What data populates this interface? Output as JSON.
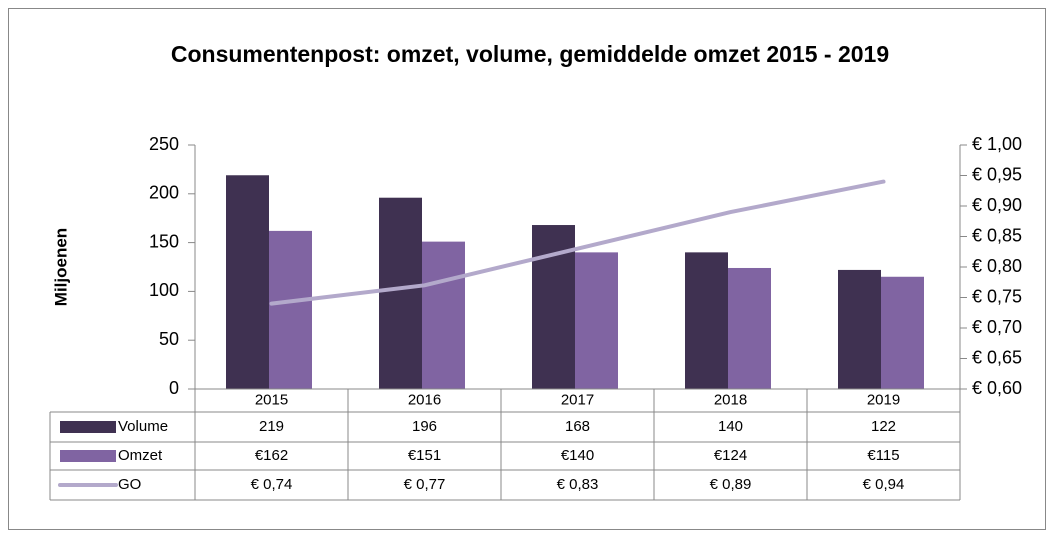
{
  "chart_data": {
    "type": "bar",
    "title": "Consumentenpost: omzet, volume, gemiddelde omzet 2015 - 2019",
    "y_label": "Miljoenen",
    "categories": [
      "2015",
      "2016",
      "2017",
      "2018",
      "2019"
    ],
    "series": [
      {
        "name": "Volume",
        "color": "#3f3151",
        "values": [
          219,
          196,
          168,
          140,
          122
        ]
      },
      {
        "name": "Omzet",
        "color": "#8064a2",
        "values": [
          162,
          151,
          140,
          124,
          115
        ],
        "value_labels": [
          "€162",
          "€151",
          "€140",
          "€124",
          "€115"
        ]
      },
      {
        "name": "GO",
        "type": "line",
        "axis": "y2",
        "color": "#b3a9cb",
        "values": [
          0.74,
          0.77,
          0.83,
          0.89,
          0.94
        ],
        "value_labels": [
          "€ 0,74",
          "€ 0,77",
          "€ 0,83",
          "€ 0,89",
          "€ 0,94"
        ]
      }
    ],
    "ylim": [
      0,
      250
    ],
    "yticks": [
      0,
      50,
      100,
      150,
      200,
      250
    ],
    "y2lim": [
      0.6,
      1.0
    ],
    "y2ticks": [
      {
        "value": 0.6,
        "label": "€ 0,60"
      },
      {
        "value": 0.65,
        "label": "€ 0,65"
      },
      {
        "value": 0.7,
        "label": "€ 0,70"
      },
      {
        "value": 0.75,
        "label": "€ 0,75"
      },
      {
        "value": 0.8,
        "label": "€ 0,80"
      },
      {
        "value": 0.85,
        "label": "€ 0,85"
      },
      {
        "value": 0.9,
        "label": "€ 0,90"
      },
      {
        "value": 0.95,
        "label": "€ 0,95"
      },
      {
        "value": 1.0,
        "label": "€ 1,00"
      }
    ],
    "grid": false,
    "data_table": true
  }
}
